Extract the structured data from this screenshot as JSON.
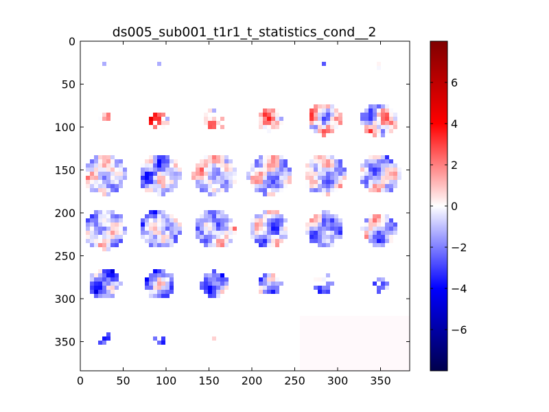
{
  "chart_data": {
    "type": "heatmap",
    "title": "ds005_sub001_t1r1_t_statistics_cond__2",
    "xlabel": "",
    "ylabel": "",
    "xlim": [
      0,
      384
    ],
    "ylim": [
      384,
      0
    ],
    "xticks": [
      0,
      50,
      100,
      150,
      200,
      250,
      300,
      350
    ],
    "yticks": [
      0,
      50,
      100,
      150,
      200,
      250,
      300,
      350
    ],
    "colorbar": {
      "colormap": "seismic",
      "range": [
        -8,
        8
      ],
      "ticks": [
        6,
        4,
        2,
        0,
        -2,
        -4,
        -6
      ],
      "tick_labels": [
        "6",
        "4",
        "2",
        "0",
        "−2",
        "−4",
        "−6"
      ],
      "colors": [
        "#00004c",
        "#0000ff",
        "#ffffff",
        "#ff0000",
        "#7f0000"
      ]
    },
    "mosaic": {
      "grid_rows": 6,
      "grid_cols": 6,
      "slice_size": 64,
      "background_color": "#ffffff",
      "empty_slot_color": "#fff9fb",
      "slices": [
        {
          "row": 0,
          "col": 0,
          "extent": 0.12,
          "mean": -1.5,
          "variability": 3.0
        },
        {
          "row": 0,
          "col": 1,
          "extent": 0.12,
          "mean": -1.0,
          "variability": 2.5
        },
        {
          "row": 0,
          "col": 2,
          "extent": 0.12,
          "mean": -2.0,
          "variability": 2.5
        },
        {
          "row": 0,
          "col": 3,
          "extent": 0.12,
          "mean": -2.0,
          "variability": 2.5
        },
        {
          "row": 0,
          "col": 4,
          "extent": 0.15,
          "mean": -2.5,
          "variability": 3.0
        },
        {
          "row": 0,
          "col": 5,
          "extent": 0.18,
          "mean": -1.0,
          "variability": 4.0
        },
        {
          "row": 1,
          "col": 0,
          "extent": 0.32,
          "mean": -0.5,
          "variability": 3.5
        },
        {
          "row": 1,
          "col": 1,
          "extent": 0.42,
          "mean": 1.5,
          "variability": 3.5
        },
        {
          "row": 1,
          "col": 2,
          "extent": 0.48,
          "mean": 1.5,
          "variability": 3.5
        },
        {
          "row": 1,
          "col": 3,
          "extent": 0.55,
          "mean": 1.5,
          "variability": 3.5
        },
        {
          "row": 1,
          "col": 4,
          "extent": 0.72,
          "mean": 0.5,
          "variability": 3.5
        },
        {
          "row": 1,
          "col": 5,
          "extent": 0.78,
          "mean": 0.0,
          "variability": 4.0
        },
        {
          "row": 2,
          "col": 0,
          "extent": 0.92,
          "mean": -0.6,
          "variability": 3.0
        },
        {
          "row": 2,
          "col": 1,
          "extent": 0.92,
          "mean": -0.8,
          "variability": 3.2
        },
        {
          "row": 2,
          "col": 2,
          "extent": 0.94,
          "mean": -0.3,
          "variability": 3.0
        },
        {
          "row": 2,
          "col": 3,
          "extent": 0.94,
          "mean": -0.6,
          "variability": 3.0
        },
        {
          "row": 2,
          "col": 4,
          "extent": 0.92,
          "mean": -0.6,
          "variability": 3.0
        },
        {
          "row": 2,
          "col": 5,
          "extent": 0.9,
          "mean": -0.8,
          "variability": 3.0
        },
        {
          "row": 3,
          "col": 0,
          "extent": 0.92,
          "mean": -0.9,
          "variability": 3.0
        },
        {
          "row": 3,
          "col": 1,
          "extent": 0.9,
          "mean": -1.0,
          "variability": 3.0
        },
        {
          "row": 3,
          "col": 2,
          "extent": 0.88,
          "mean": -0.8,
          "variability": 3.0
        },
        {
          "row": 3,
          "col": 3,
          "extent": 0.85,
          "mean": -0.9,
          "variability": 3.0
        },
        {
          "row": 3,
          "col": 4,
          "extent": 0.8,
          "mean": -1.0,
          "variability": 3.0
        },
        {
          "row": 3,
          "col": 5,
          "extent": 0.75,
          "mean": -0.8,
          "variability": 3.0
        },
        {
          "row": 4,
          "col": 0,
          "extent": 0.7,
          "mean": -1.6,
          "variability": 3.0
        },
        {
          "row": 4,
          "col": 1,
          "extent": 0.66,
          "mean": -1.8,
          "variability": 3.0
        },
        {
          "row": 4,
          "col": 2,
          "extent": 0.6,
          "mean": -1.8,
          "variability": 3.0
        },
        {
          "row": 4,
          "col": 3,
          "extent": 0.52,
          "mean": -2.0,
          "variability": 3.0
        },
        {
          "row": 4,
          "col": 4,
          "extent": 0.45,
          "mean": -2.0,
          "variability": 3.0
        },
        {
          "row": 4,
          "col": 5,
          "extent": 0.38,
          "mean": -2.0,
          "variability": 3.0
        },
        {
          "row": 5,
          "col": 0,
          "extent": 0.3,
          "mean": -2.8,
          "variability": 2.5
        },
        {
          "row": 5,
          "col": 1,
          "extent": 0.22,
          "mean": -3.0,
          "variability": 2.5
        },
        {
          "row": 5,
          "col": 2,
          "extent": 0.1,
          "mean": 0.0,
          "variability": 3.0
        }
      ]
    }
  }
}
